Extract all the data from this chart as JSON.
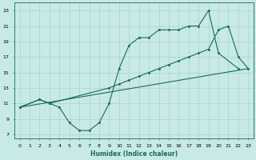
{
  "xlabel": "Humidex (Indice chaleur)",
  "bg_color": "#c8eae4",
  "grid_color": "#a8d4cc",
  "line_color": "#1a6b5a",
  "xlim": [
    -0.5,
    23.5
  ],
  "ylim": [
    6.5,
    24.0
  ],
  "xticks": [
    0,
    1,
    2,
    3,
    4,
    5,
    6,
    7,
    8,
    9,
    10,
    11,
    12,
    13,
    14,
    15,
    16,
    17,
    18,
    19,
    20,
    21,
    22,
    23
  ],
  "yticks": [
    7,
    9,
    11,
    13,
    15,
    17,
    19,
    21,
    23
  ],
  "line1_x": [
    0,
    2,
    3,
    4,
    5,
    6,
    7,
    8,
    9,
    10,
    11,
    12,
    13,
    14,
    15,
    16,
    17,
    18,
    19,
    20,
    22
  ],
  "line1_y": [
    10.5,
    11.5,
    11.0,
    10.5,
    8.5,
    7.5,
    7.5,
    8.5,
    11.0,
    15.5,
    18.5,
    19.5,
    19.5,
    20.5,
    20.5,
    20.5,
    21.0,
    21.0,
    23.0,
    17.5,
    15.5
  ],
  "line2_x": [
    0,
    23
  ],
  "line2_y": [
    10.5,
    15.5
  ],
  "line3_x": [
    0,
    2,
    3,
    9,
    10,
    11,
    12,
    13,
    14,
    15,
    16,
    17,
    18,
    19,
    20,
    21,
    22,
    23
  ],
  "line3_y": [
    10.5,
    11.5,
    11.0,
    13.0,
    13.5,
    14.0,
    14.5,
    15.0,
    15.5,
    16.0,
    16.5,
    17.0,
    17.5,
    18.0,
    20.5,
    21.0,
    17.0,
    15.5
  ],
  "xlabel_fontsize": 5.5,
  "tick_fontsize": 4.5,
  "linewidth": 0.8,
  "markersize": 1.8
}
